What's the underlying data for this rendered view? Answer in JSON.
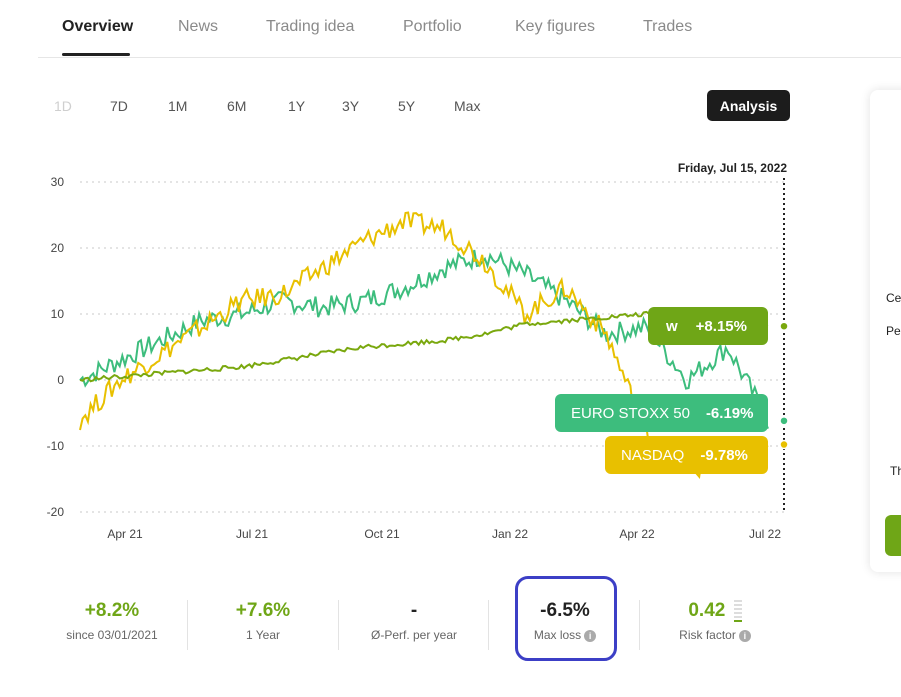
{
  "tabs": [
    {
      "label": "Overview",
      "active": true
    },
    {
      "label": "News"
    },
    {
      "label": "Trading idea"
    },
    {
      "label": "Portfolio"
    },
    {
      "label": "Key figures"
    },
    {
      "label": "Trades"
    }
  ],
  "ranges": [
    {
      "label": "1D",
      "disabled": true
    },
    {
      "label": "7D"
    },
    {
      "label": "1M"
    },
    {
      "label": "6M"
    },
    {
      "label": "1Y"
    },
    {
      "label": "3Y"
    },
    {
      "label": "5Y"
    },
    {
      "label": "Max"
    }
  ],
  "analysis_label": "Analysis",
  "side_panel": {
    "line1": "Ce",
    "line2": "Pe",
    "line3": "Th"
  },
  "chart_data": {
    "type": "line",
    "date_label": "Friday, Jul 15, 2022",
    "y_ticks": [
      "30",
      "20",
      "10",
      "0",
      "-10",
      "-20"
    ],
    "ylim": [
      -20,
      30
    ],
    "x_ticks": [
      "Apr 21",
      "Jul 21",
      "Oct 21",
      "Jan 22",
      "Apr 22",
      "Jul 22"
    ],
    "grid": true,
    "series": [
      {
        "name": "EURO STOXX 50",
        "color": "#3dbd7d",
        "end_value_label": "-6.19%",
        "approx_values": [
          0,
          3,
          6,
          9,
          10,
          12,
          11,
          12,
          14,
          17,
          19,
          16,
          12,
          7,
          8,
          0,
          5,
          -6.19
        ]
      },
      {
        "name": "NASDAQ",
        "color": "#e8c000",
        "end_value_label": "-9.78%",
        "approx_values": [
          -6,
          0,
          4,
          8,
          12,
          13,
          17,
          21,
          24,
          23,
          18,
          10,
          14,
          7,
          -8,
          -14,
          -12,
          -9.78
        ]
      },
      {
        "name": "wikifolio",
        "icon": "wikifolio-logo",
        "color": "#7aa80e",
        "end_value_label": "+8.15%",
        "approx_values": [
          0,
          0.5,
          1,
          1.5,
          2,
          3,
          4,
          5,
          5.5,
          6,
          7,
          8.5,
          9,
          9.5,
          10,
          10,
          9,
          8.15
        ]
      }
    ]
  },
  "stats": [
    {
      "value": "+8.2%",
      "label": "since 03/01/2021",
      "color": "#6fa617"
    },
    {
      "value": "+7.6%",
      "label": "1 Year",
      "color": "#6fa617"
    },
    {
      "value": "-",
      "label": "Ø-Perf. per year",
      "color": "#222222"
    },
    {
      "value": "-6.5%",
      "label": "Max loss",
      "color": "#222222",
      "info": "i"
    },
    {
      "value": "0.42",
      "label": "Risk factor",
      "color": "#6fa617",
      "info": "i"
    }
  ]
}
